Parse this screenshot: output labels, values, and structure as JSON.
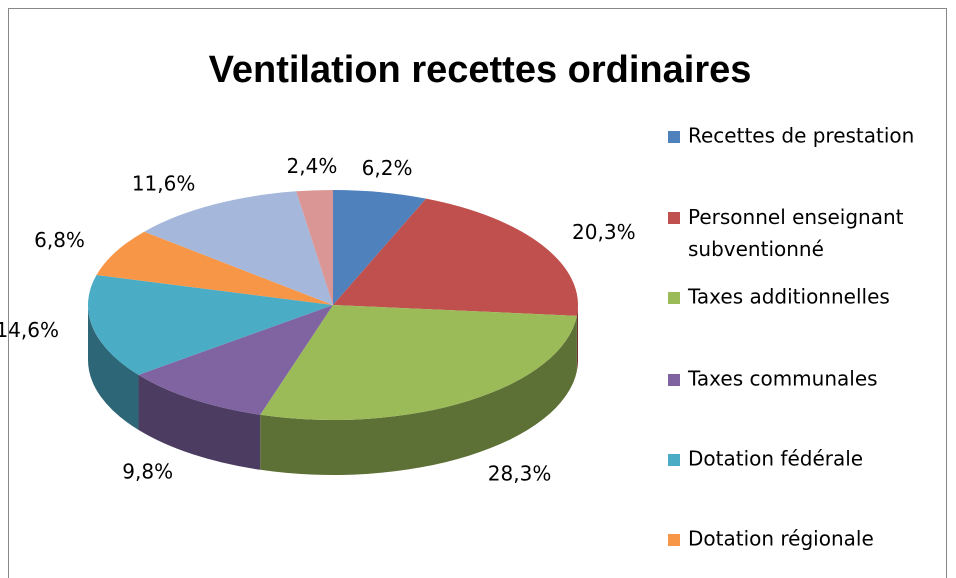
{
  "chart_data": {
    "type": "pie3d",
    "title": "Ventilation recettes ordinaires",
    "categories": [
      "Recettes de prestation",
      "Personnel enseignant subventionné",
      "Taxes additionnelles",
      "Taxes communales",
      "Dotation fédérale",
      "Dotation régionale",
      null,
      null
    ],
    "values": [
      6.2,
      20.3,
      28.3,
      9.8,
      14.6,
      6.8,
      11.6,
      2.4
    ],
    "value_labels": [
      "6,2%",
      "20,3%",
      "28,3%",
      "9,8%",
      "14,6%",
      "6,8%",
      "11,6%",
      "2,4%"
    ],
    "colors": [
      "#4f81bd",
      "#c0504d",
      "#9bbb59",
      "#8064a2",
      "#4bacc6",
      "#f79646",
      "#a5b7db",
      "#d99694"
    ],
    "legend": "right"
  }
}
